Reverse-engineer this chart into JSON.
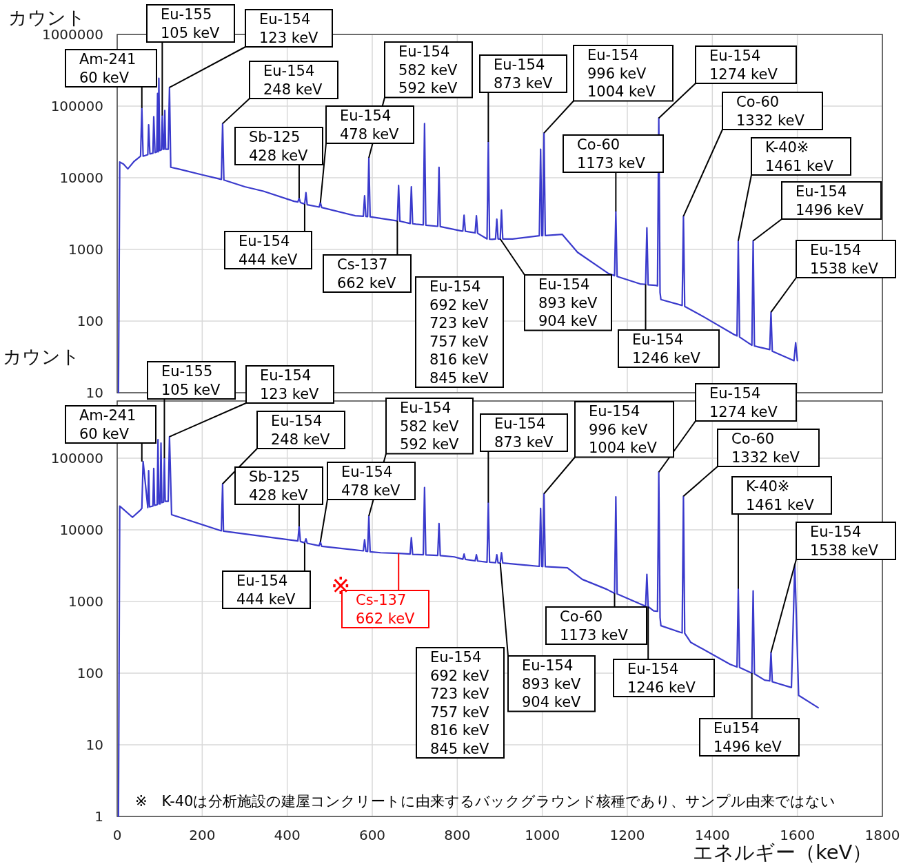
{
  "chart_data": [
    {
      "type": "line",
      "ylabel": "カウント",
      "xlim": [
        0,
        1800
      ],
      "xticks": [
        0,
        200,
        400,
        600,
        800,
        1000,
        1200,
        1400,
        1600,
        1800
      ],
      "ylim": [
        10,
        1000000
      ],
      "yticks": [
        10,
        100,
        1000,
        10000,
        100000,
        1000000
      ],
      "log": "y",
      "grid": true,
      "tick_labels": "y",
      "series": [
        {
          "color": "#3a3acc",
          "x": [
            3,
            6,
            15,
            25,
            40,
            55,
            58,
            61,
            72,
            74,
            77,
            84,
            86,
            89,
            93,
            95,
            96,
            97,
            98,
            100,
            104,
            106,
            108,
            110,
            112,
            114,
            120,
            123,
            126,
            150,
            200,
            245,
            248,
            251,
            300,
            344,
            416,
            425,
            428,
            431,
            441,
            444,
            447,
            475,
            478,
            481,
            560,
            579,
            582,
            585,
            589,
            592,
            595,
            659,
            662,
            665,
            689,
            692,
            695,
            703,
            720,
            723,
            726,
            754,
            757,
            760,
            811,
            813,
            816,
            819,
            842,
            845,
            848,
            870,
            873,
            876,
            882,
            890,
            893,
            896,
            901,
            904,
            907,
            930,
            993,
            996,
            999,
            1001,
            1004,
            1007,
            1047,
            1083,
            1156,
            1170,
            1173,
            1176,
            1230,
            1243,
            1246,
            1249,
            1266,
            1271,
            1274,
            1277,
            1279,
            1328,
            1329,
            1332,
            1335,
            1377,
            1451,
            1458,
            1461,
            1464,
            1493,
            1496,
            1499,
            1512,
            1535,
            1538,
            1541,
            1592,
            1596,
            1600
          ],
          "values": [
            10,
            16600,
            15500,
            13300,
            17000,
            20000,
            94000,
            20000,
            21000,
            55000,
            21500,
            22000,
            71000,
            22500,
            23000,
            150000,
            23000,
            23500,
            245000,
            24000,
            24500,
            74000,
            25000,
            25000,
            87000,
            25000,
            25000,
            182000,
            14000,
            13000,
            11000,
            9500,
            57000,
            9300,
            7500,
            6500,
            4700,
            4600,
            5200,
            4500,
            4300,
            6200,
            4200,
            3900,
            4500,
            3850,
            2950,
            2900,
            5600,
            2880,
            2870,
            19000,
            2850,
            2500,
            7800,
            2480,
            2300,
            7500,
            2280,
            2250,
            2200,
            57000,
            2180,
            2100,
            14000,
            2080,
            1800,
            1800,
            3000,
            1790,
            1700,
            2950,
            1680,
            1400,
            31600,
            1390,
            1380,
            1400,
            2650,
            1400,
            1400,
            3550,
            1400,
            1400,
            1550,
            25000,
            1550,
            1560,
            42000,
            1560,
            1620,
            910,
            460,
            430,
            3400,
            420,
            330,
            325,
            2000,
            320,
            316,
            310,
            68000,
            250,
            200,
            166,
            165,
            2900,
            160,
            117,
            65,
            62,
            1320,
            60,
            46,
            1320,
            45,
            43,
            40,
            133,
            38,
            28,
            50,
            28
          ]
        }
      ],
      "annotations": [
        {
          "text": "Am-241\n60 keV",
          "x": 58,
          "y": 94000
        },
        {
          "text": "Eu-155\n105 keV",
          "x": 106,
          "y": 74000
        },
        {
          "text": "Eu-154\n123 keV",
          "x": 123,
          "y": 182000
        },
        {
          "text": "Eu-154\n248 keV",
          "x": 248,
          "y": 57000
        },
        {
          "text": "Sb-125\n428 keV",
          "x": 428,
          "y": 5200
        },
        {
          "text": "Eu-154\n478 keV",
          "x": 478,
          "y": 4500
        },
        {
          "text": "Eu-154\n582 keV\n592 keV",
          "x": 592,
          "y": 19000
        },
        {
          "text": "Eu-154\n873 keV",
          "x": 873,
          "y": 31600
        },
        {
          "text": "Eu-154\n996 keV\n1004 keV",
          "x": 1004,
          "y": 42000
        },
        {
          "text": "Eu-154\n1274 keV",
          "x": 1274,
          "y": 68000
        },
        {
          "text": "Co-60\n1332 keV",
          "x": 1332,
          "y": 2900
        },
        {
          "text": "Co-60\n1173 keV",
          "x": 1173,
          "y": 3400
        },
        {
          "text": "K-40※\n1461 keV",
          "x": 1461,
          "y": 1320
        },
        {
          "text": "Eu-154\n1496 keV",
          "x": 1496,
          "y": 1320
        },
        {
          "text": "Eu-154\n1538 keV",
          "x": 1538,
          "y": 133
        },
        {
          "text": "Eu-154\n444 keV",
          "x": 441,
          "y": 4300
        },
        {
          "text": "Cs-137\n662 keV",
          "x": 659,
          "y": 2500
        },
        "Eu-154\n692 keV\n723 keV\n757 keV\n816 keV\n845 keV",
        {
          "text": "Eu-154\n893 keV\n904 keV",
          "x": 901,
          "y": 1400
        },
        {
          "text": "Eu-154\n1246 keV",
          "x": 1243,
          "y": 325
        }
      ]
    },
    {
      "type": "line",
      "ylabel": "カウント",
      "xlabel": "エネルギー（keV）",
      "xlim": [
        0,
        1800
      ],
      "xticks": [
        0,
        200,
        400,
        600,
        800,
        1000,
        1200,
        1400,
        1600,
        1800
      ],
      "ylim": [
        1,
        630000
      ],
      "yticks": [
        1,
        10,
        100,
        1000,
        10000,
        100000
      ],
      "log": "y",
      "grid": true,
      "series": [
        {
          "color": "#3a3acc",
          "x": [
            3,
            6,
            8,
            36,
            55,
            58,
            61,
            72,
            74,
            76,
            84,
            86,
            88,
            94,
            96,
            98,
            101,
            103,
            105,
            109,
            111,
            113,
            120,
            123,
            128,
            245,
            248,
            250,
            425,
            428,
            431,
            441,
            444,
            447,
            475,
            478,
            481,
            579,
            582,
            585,
            589,
            592,
            595,
            620,
            662,
            689,
            692,
            695,
            720,
            723,
            726,
            754,
            757,
            760,
            793,
            813,
            816,
            819,
            842,
            845,
            848,
            870,
            873,
            876,
            890,
            893,
            896,
            901,
            904,
            907,
            993,
            996,
            999,
            1001,
            1004,
            1007,
            1059,
            1094,
            1152,
            1170,
            1173,
            1176,
            1233,
            1243,
            1246,
            1249,
            1262,
            1271,
            1274,
            1277,
            1279,
            1326,
            1329,
            1332,
            1335,
            1349,
            1442,
            1458,
            1461,
            1464,
            1493,
            1496,
            1499,
            1523,
            1535,
            1538,
            1541,
            1586,
            1594,
            1603,
            1649
          ],
          "values": [
            1,
            21500,
            21000,
            15000,
            19000,
            20000,
            90000,
            20500,
            67000,
            21000,
            21500,
            72000,
            22000,
            22500,
            182000,
            23000,
            23000,
            163000,
            24000,
            24500,
            100000,
            25000,
            25000,
            200000,
            16300,
            9700,
            44000,
            9600,
            7000,
            11200,
            6900,
            6600,
            7500,
            6500,
            6000,
            6800,
            5900,
            5100,
            7300,
            5050,
            5000,
            15600,
            4950,
            4800,
            4700,
            4600,
            7800,
            4550,
            4500,
            39000,
            4480,
            4400,
            12300,
            4380,
            4200,
            3900,
            4600,
            3880,
            3700,
            4500,
            3680,
            3550,
            24000,
            3540,
            3480,
            4500,
            3470,
            3460,
            4800,
            3450,
            3100,
            20000,
            3090,
            3080,
            32000,
            3070,
            2950,
            2040,
            1480,
            1300,
            29000,
            1280,
            910,
            860,
            2400,
            850,
            740,
            730,
            64000,
            600,
            460,
            370,
            365,
            29500,
            360,
            270,
            133,
            122,
            1510,
            120,
            100,
            1410,
            98,
            80,
            78,
            195,
            76,
            63,
            3300,
            49,
            33
          ]
        }
      ],
      "annotations": [
        {
          "text": "Am-241\n60 keV",
          "x": 58,
          "y": 90000
        },
        {
          "text": "Eu-155\n105 keV",
          "x": 111,
          "y": 100000
        },
        {
          "text": "Eu-154\n123 keV",
          "x": 123,
          "y": 200000
        },
        {
          "text": "Eu-154\n248 keV",
          "x": 248,
          "y": 44000
        },
        {
          "text": "Sb-125\n428 keV",
          "x": 428,
          "y": 11200
        },
        {
          "text": "Eu-154\n478 keV",
          "x": 478,
          "y": 6800
        },
        {
          "text": "Eu-154\n582 keV\n592 keV",
          "x": 592,
          "y": 15600
        },
        {
          "text": "Eu-154\n873 keV",
          "x": 873,
          "y": 24000
        },
        {
          "text": "Eu-154\n996 keV\n1004 keV",
          "x": 1004,
          "y": 32000
        },
        {
          "text": "Eu-154\n1274 keV",
          "x": 1274,
          "y": 64000
        },
        {
          "text": "Co-60\n1332 keV",
          "x": 1332,
          "y": 29500
        },
        {
          "text": "K-40※\n1461 keV",
          "x": 1461,
          "y": 1510
        },
        {
          "text": "Eu-154\n1538 keV",
          "x": 1538,
          "y": 195
        },
        {
          "text": "Eu-154\n444 keV",
          "x": 441,
          "y": 6600
        },
        {
          "text": "Cs-137\n662 keV",
          "x": 662,
          "y": 4700
        },
        "※",
        "Eu-154\n692 keV\n723 keV\n757 keV\n816 keV\n845 keV",
        {
          "text": "Eu-154\n893 keV\n904 keV",
          "x": 901,
          "y": 3460
        },
        {
          "text": "Co-60\n1173 keV",
          "x": 1170,
          "y": 1300
        },
        {
          "text": "Eu-154\n1246 keV",
          "x": 1249,
          "y": 850
        },
        {
          "text": "Eu154\n1496 keV",
          "x": 1493,
          "y": 100
        },
        "※　K-40は分析施設の建屋コンクリートに由来するバックグラウンド核種であり、サンプル由来ではない"
      ]
    }
  ]
}
